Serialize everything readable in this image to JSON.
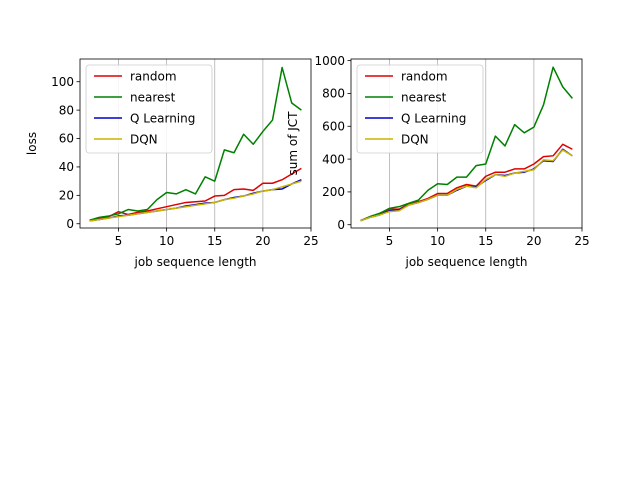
{
  "colors": {
    "random": "#e00000",
    "nearest": "#008000",
    "q_learning": "#0000cc",
    "dqn": "#c8b400"
  },
  "chart_data": [
    {
      "type": "line",
      "xlabel": "job sequence length",
      "ylabel": "loss",
      "xlim": [
        1.0,
        25.0
      ],
      "ylim": [
        -3,
        116
      ],
      "xticks": [
        5,
        10,
        15,
        20,
        25
      ],
      "yticks": [
        0,
        20,
        40,
        60,
        80,
        100
      ],
      "grid": "vertical",
      "legend_position": "upper-left",
      "x": [
        2,
        3,
        4,
        5,
        6,
        7,
        8,
        9,
        10,
        11,
        12,
        13,
        14,
        15,
        16,
        17,
        18,
        19,
        20,
        21,
        22,
        23,
        24
      ],
      "series": [
        {
          "name": "random",
          "color_key": "random",
          "values": [
            2.5,
            4,
            5,
            8.5,
            6.5,
            8,
            9,
            10.5,
            12,
            13.5,
            15,
            15.5,
            16,
            19.5,
            20,
            24,
            24.5,
            23.5,
            28.5,
            28.5,
            31,
            35,
            39
          ]
        },
        {
          "name": "nearest",
          "color_key": "nearest",
          "values": [
            2.5,
            4.5,
            5.5,
            7,
            10,
            9,
            10,
            17,
            22,
            21,
            24,
            21,
            33,
            30,
            52,
            50,
            63,
            56,
            65,
            73,
            110,
            85,
            80
          ]
        },
        {
          "name": "Q Learning",
          "color_key": "q_learning",
          "values": [
            2,
            3,
            4,
            5.5,
            6,
            7,
            8,
            9,
            10,
            11,
            12.5,
            13.5,
            14.5,
            15,
            17,
            18.5,
            19.5,
            21.5,
            23,
            24,
            24.5,
            28,
            31
          ]
        },
        {
          "name": "DQN",
          "color_key": "dqn",
          "values": [
            2,
            3,
            4,
            5,
            6,
            7,
            8,
            9,
            10,
            11,
            12,
            13,
            14,
            15,
            17,
            18,
            19.5,
            21,
            23,
            24,
            26,
            28,
            30
          ]
        }
      ]
    },
    {
      "type": "line",
      "xlabel": "job sequence length",
      "ylabel": "sum of JCT",
      "xlim": [
        1.0,
        25.0
      ],
      "ylim": [
        -20,
        1010
      ],
      "xticks": [
        5,
        10,
        15,
        20,
        25
      ],
      "yticks": [
        0,
        200,
        400,
        600,
        800,
        1000
      ],
      "grid": "vertical",
      "legend_position": "upper-left",
      "x": [
        2,
        3,
        4,
        5,
        6,
        7,
        8,
        9,
        10,
        11,
        12,
        13,
        14,
        15,
        16,
        17,
        18,
        19,
        20,
        21,
        22,
        23,
        24
      ],
      "series": [
        {
          "name": "random",
          "color_key": "random",
          "values": [
            25,
            50,
            65,
            95,
            95,
            125,
            140,
            160,
            190,
            190,
            225,
            245,
            235,
            295,
            320,
            320,
            340,
            340,
            370,
            415,
            420,
            490,
            460
          ]
        },
        {
          "name": "nearest",
          "color_key": "nearest",
          "values": [
            25,
            50,
            70,
            100,
            110,
            130,
            150,
            210,
            250,
            245,
            290,
            290,
            360,
            370,
            540,
            480,
            610,
            560,
            595,
            730,
            960,
            840,
            770
          ]
        },
        {
          "name": "Q Learning",
          "color_key": "q_learning",
          "values": [
            25,
            45,
            60,
            85,
            90,
            120,
            135,
            155,
            180,
            180,
            210,
            235,
            230,
            270,
            305,
            300,
            315,
            320,
            340,
            390,
            385,
            460,
            420
          ]
        },
        {
          "name": "DQN",
          "color_key": "dqn",
          "values": [
            25,
            45,
            60,
            80,
            85,
            120,
            135,
            155,
            180,
            180,
            215,
            235,
            225,
            275,
            305,
            295,
            315,
            325,
            335,
            395,
            390,
            455,
            420
          ]
        }
      ]
    }
  ]
}
